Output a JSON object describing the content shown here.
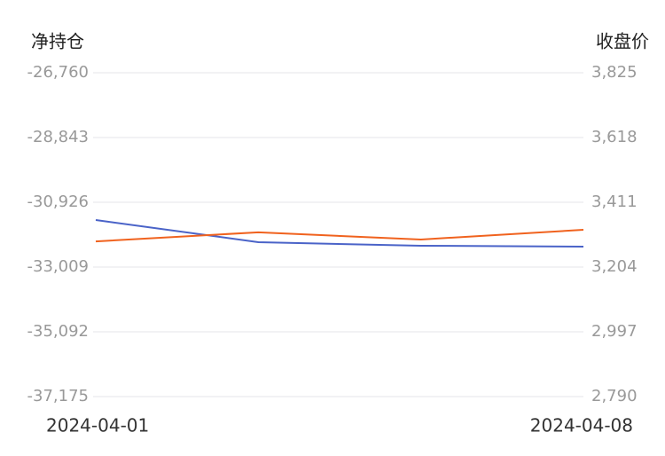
{
  "chart_data": {
    "type": "line",
    "y_label": "净持仓",
    "y2_label": "收盘价",
    "categories": [
      "2024-04-01",
      null,
      null,
      "2024-04-08"
    ],
    "series": [
      {
        "name": "净持仓",
        "color": "#4a63c8",
        "values": [
          -31497,
          -32210,
          -32324,
          -32353
        ]
      },
      {
        "name": "收盘价",
        "color": "#f0621e",
        "axis": "y2",
        "values": [
          3286,
          3315,
          3292,
          3323
        ]
      }
    ],
    "ylim": [
      -37175,
      -26760
    ],
    "yticks": [
      {
        "value": -37175,
        "label": "-37,175"
      },
      {
        "value": -35092,
        "label": "-35,092"
      },
      {
        "value": -33009,
        "label": "-33,009"
      },
      {
        "value": -30926,
        "label": "-30,926"
      },
      {
        "value": -28843,
        "label": "-28,843"
      },
      {
        "value": -26760,
        "label": "-26,760"
      }
    ],
    "y2lim": [
      2790,
      3825
    ],
    "y2ticks": [
      {
        "value": 2790,
        "label": "2,790"
      },
      {
        "value": 2997,
        "label": "2,997"
      },
      {
        "value": 3204,
        "label": "3,204"
      },
      {
        "value": 3411,
        "label": "3,411"
      },
      {
        "value": 3618,
        "label": "3,618"
      },
      {
        "value": 3825,
        "label": "3,825"
      }
    ],
    "grid": true
  }
}
